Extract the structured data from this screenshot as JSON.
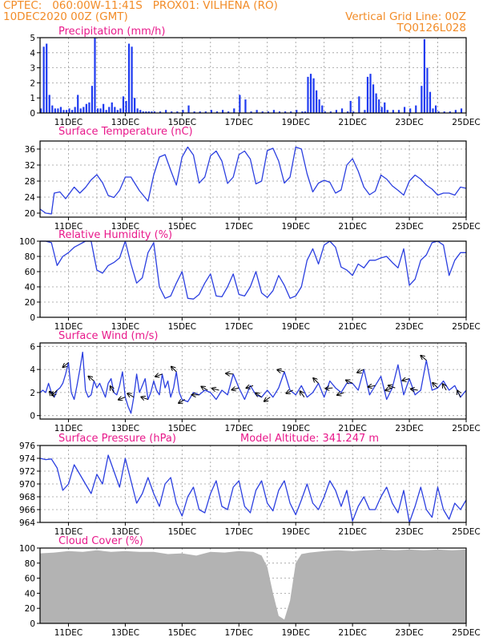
{
  "header": {
    "line1": "CPTEC:   060:00W-11:41S   PROX01: VILHENA (RO)",
    "line2_left": "10DEC2020 00Z (GMT)",
    "line2_right": "Vertical Grid Line: 00Z",
    "line3_right": "TQ0126L028"
  },
  "colors": {
    "line": "#2b3fe0",
    "bar": "#1f3bf0",
    "cloud": "#b3b3b3",
    "title": "#e8198b",
    "header": "#f28c28",
    "grid": "#9a9a9a"
  },
  "x_axis": {
    "start": "10DEC2020 00Z",
    "end": "25DEC2020 00Z",
    "tick_labels": [
      "11DEC",
      "13DEC",
      "15DEC",
      "17DEC",
      "19DEC",
      "21DEC",
      "23DEC",
      "25DEC"
    ],
    "tick_days": [
      11,
      13,
      15,
      17,
      19,
      21,
      23,
      25
    ]
  },
  "chart_data": [
    {
      "id": "precip",
      "type": "bar",
      "title": "Precipitation (mm/h)",
      "ylim": [
        0,
        5
      ],
      "yticks": [
        0,
        1,
        2,
        3,
        4,
        5
      ],
      "x_days": [
        10.0,
        10.1,
        10.2,
        10.3,
        10.4,
        10.5,
        10.6,
        10.7,
        10.8,
        10.9,
        11.0,
        11.1,
        11.2,
        11.3,
        11.4,
        11.5,
        11.6,
        11.7,
        11.8,
        11.9,
        12.0,
        12.1,
        12.2,
        12.3,
        12.4,
        12.5,
        12.6,
        12.7,
        12.8,
        12.9,
        13.0,
        13.1,
        13.2,
        13.3,
        13.4,
        13.5,
        13.6,
        13.7,
        13.8,
        13.9,
        14.0,
        14.2,
        14.4,
        14.6,
        14.8,
        15.0,
        15.2,
        15.4,
        15.6,
        15.8,
        16.0,
        16.2,
        16.4,
        16.6,
        16.8,
        17.0,
        17.2,
        17.4,
        17.6,
        17.8,
        18.0,
        18.2,
        18.4,
        18.6,
        18.8,
        19.0,
        19.2,
        19.3,
        19.4,
        19.5,
        19.6,
        19.7,
        19.8,
        19.9,
        20.0,
        20.2,
        20.4,
        20.6,
        20.8,
        20.9,
        21.0,
        21.2,
        21.4,
        21.5,
        21.6,
        21.7,
        21.8,
        21.9,
        22.0,
        22.1,
        22.2,
        22.4,
        22.6,
        22.8,
        23.0,
        23.2,
        23.4,
        23.5,
        23.6,
        23.7,
        23.8,
        23.9,
        24.0,
        24.2,
        24.4,
        24.6,
        24.8
      ],
      "values": [
        0.3,
        4.4,
        4.6,
        1.2,
        0.5,
        0.3,
        0.3,
        0.4,
        0.2,
        0.2,
        0.3,
        0.2,
        0.4,
        1.2,
        0.3,
        0.4,
        0.6,
        0.7,
        1.8,
        5.0,
        0.3,
        0.3,
        0.6,
        0.2,
        0.4,
        0.7,
        0.4,
        0.2,
        0.3,
        1.1,
        0.8,
        4.6,
        4.4,
        1.0,
        0.3,
        0.2,
        0.1,
        0.1,
        0.1,
        0.1,
        0.1,
        0.1,
        0.2,
        0.1,
        0.1,
        0.2,
        0.5,
        0.1,
        0.1,
        0.1,
        0.2,
        0.1,
        0.2,
        0.1,
        0.3,
        1.2,
        0.9,
        0.1,
        0.2,
        0.1,
        0.1,
        0.2,
        0.1,
        0.1,
        0.1,
        0.2,
        0.1,
        0.1,
        2.4,
        2.6,
        2.3,
        1.5,
        0.9,
        0.5,
        0.1,
        0.1,
        0.2,
        0.3,
        0.1,
        0.8,
        0.1,
        1.1,
        0.2,
        2.4,
        2.6,
        1.9,
        1.3,
        0.9,
        0.4,
        0.7,
        0.2,
        0.2,
        0.2,
        0.4,
        0.3,
        0.5,
        1.8,
        4.9,
        3.0,
        1.4,
        0.3,
        0.5,
        0.1,
        0.1,
        0.1,
        0.2,
        0.3
      ]
    },
    {
      "id": "temperature",
      "type": "line",
      "title": "Surface Temperature (nC)",
      "ylim": [
        19,
        38
      ],
      "yticks": [
        20,
        24,
        28,
        32,
        36
      ],
      "x": [
        10.0,
        10.2,
        10.4,
        10.5,
        10.7,
        10.9,
        11.2,
        11.4,
        11.6,
        11.8,
        12.0,
        12.2,
        12.4,
        12.6,
        12.8,
        13.0,
        13.2,
        13.5,
        13.8,
        14.0,
        14.2,
        14.4,
        14.6,
        14.8,
        15.0,
        15.2,
        15.4,
        15.6,
        15.8,
        16.0,
        16.2,
        16.4,
        16.6,
        16.8,
        17.0,
        17.2,
        17.4,
        17.6,
        17.8,
        18.0,
        18.2,
        18.4,
        18.6,
        18.8,
        19.0,
        19.2,
        19.4,
        19.6,
        19.8,
        20.0,
        20.2,
        20.4,
        20.6,
        20.8,
        21.0,
        21.2,
        21.4,
        21.6,
        21.8,
        22.0,
        22.2,
        22.4,
        22.6,
        22.8,
        23.0,
        23.2,
        23.4,
        23.6,
        23.8,
        24.0,
        24.2,
        24.4,
        24.6,
        24.8,
        25.0
      ],
      "values": [
        21.0,
        20.0,
        19.8,
        25.0,
        25.3,
        23.6,
        26.5,
        25.0,
        26.4,
        28.3,
        29.6,
        27.6,
        24.4,
        23.9,
        25.7,
        29.0,
        29.0,
        25.6,
        23.0,
        29.5,
        34.0,
        34.6,
        30.7,
        27.0,
        34.0,
        36.5,
        34.5,
        27.5,
        29.0,
        34.3,
        35.5,
        33.0,
        27.4,
        29.0,
        34.6,
        35.5,
        33.5,
        27.3,
        28.0,
        35.6,
        36.2,
        33.0,
        27.5,
        29.0,
        36.5,
        36.0,
        29.8,
        25.3,
        27.5,
        28.2,
        27.7,
        25.0,
        25.8,
        32.0,
        33.6,
        30.5,
        26.5,
        24.6,
        25.5,
        29.5,
        28.5,
        26.8,
        25.7,
        24.5,
        28.0,
        29.5,
        28.5,
        27.0,
        26.0,
        24.5,
        25.0,
        25.0,
        24.5,
        26.5,
        26.2
      ]
    },
    {
      "id": "humidity",
      "type": "line",
      "title": "Relative Humidity (%)",
      "ylim": [
        0,
        100
      ],
      "yticks": [
        0,
        20,
        40,
        60,
        80,
        100
      ],
      "x": [
        10.0,
        10.2,
        10.4,
        10.6,
        10.8,
        11.0,
        11.2,
        11.4,
        11.6,
        11.8,
        12.0,
        12.2,
        12.4,
        12.6,
        12.8,
        13.0,
        13.2,
        13.4,
        13.6,
        13.8,
        14.0,
        14.2,
        14.4,
        14.6,
        14.8,
        15.0,
        15.2,
        15.4,
        15.6,
        15.8,
        16.0,
        16.2,
        16.4,
        16.6,
        16.8,
        17.0,
        17.2,
        17.4,
        17.6,
        17.8,
        18.0,
        18.2,
        18.4,
        18.6,
        18.8,
        19.0,
        19.2,
        19.4,
        19.6,
        19.8,
        20.0,
        20.2,
        20.4,
        20.6,
        20.8,
        21.0,
        21.2,
        21.4,
        21.6,
        21.8,
        22.0,
        22.2,
        22.4,
        22.6,
        22.8,
        23.0,
        23.2,
        23.4,
        23.6,
        23.8,
        24.0,
        24.2,
        24.4,
        24.6,
        24.8,
        25.0
      ],
      "values": [
        100,
        100,
        98,
        68,
        80,
        85,
        92,
        96,
        100,
        100,
        62,
        58,
        68,
        72,
        78,
        100,
        70,
        45,
        52,
        85,
        98,
        40,
        25,
        28,
        45,
        60,
        25,
        24,
        30,
        45,
        57,
        28,
        27,
        40,
        57,
        30,
        28,
        40,
        60,
        32,
        26,
        35,
        55,
        42,
        25,
        28,
        40,
        75,
        90,
        70,
        95,
        100,
        92,
        66,
        62,
        55,
        70,
        65,
        75,
        75,
        78,
        80,
        72,
        65,
        90,
        42,
        50,
        75,
        82,
        98,
        100,
        95,
        55,
        75,
        85,
        85
      ]
    },
    {
      "id": "wind",
      "type": "line",
      "title": "Surface Wind (m/s)",
      "ylim": [
        -0.3,
        6.3
      ],
      "yticks": [
        0,
        2,
        4,
        6
      ],
      "x": [
        10.0,
        10.1,
        10.2,
        10.3,
        10.4,
        10.5,
        10.6,
        10.7,
        10.8,
        10.9,
        11.0,
        11.1,
        11.2,
        11.3,
        11.4,
        11.5,
        11.6,
        11.7,
        11.8,
        11.9,
        12.0,
        12.1,
        12.2,
        12.3,
        12.4,
        12.5,
        12.6,
        12.7,
        12.8,
        12.9,
        13.0,
        13.1,
        13.2,
        13.3,
        13.4,
        13.5,
        13.6,
        13.7,
        13.8,
        13.9,
        14.0,
        14.1,
        14.2,
        14.3,
        14.4,
        14.5,
        14.6,
        14.7,
        14.8,
        14.9,
        15.0,
        15.2,
        15.4,
        15.6,
        15.8,
        16.0,
        16.2,
        16.4,
        16.6,
        16.8,
        17.0,
        17.2,
        17.4,
        17.6,
        17.8,
        18.0,
        18.2,
        18.4,
        18.6,
        18.8,
        19.0,
        19.2,
        19.4,
        19.6,
        19.8,
        20.0,
        20.2,
        20.4,
        20.6,
        20.8,
        21.0,
        21.2,
        21.4,
        21.6,
        21.8,
        22.0,
        22.2,
        22.4,
        22.6,
        22.8,
        23.0,
        23.2,
        23.4,
        23.6,
        23.8,
        24.0,
        24.2,
        24.4,
        24.6,
        24.8,
        25.0
      ],
      "values": [
        2.0,
        2.2,
        2.0,
        2.8,
        2.0,
        1.6,
        2.2,
        2.4,
        2.8,
        3.6,
        4.6,
        2.0,
        1.4,
        2.6,
        4.0,
        5.5,
        2.2,
        1.6,
        1.8,
        3.0,
        2.4,
        2.8,
        2.2,
        1.6,
        2.8,
        3.2,
        2.0,
        1.8,
        2.6,
        3.8,
        1.6,
        0.8,
        0.2,
        1.6,
        3.6,
        2.0,
        2.6,
        3.2,
        1.4,
        2.0,
        3.0,
        2.2,
        1.8,
        3.6,
        2.4,
        3.0,
        1.6,
        2.4,
        3.8,
        2.0,
        1.4,
        1.2,
        2.0,
        1.8,
        2.2,
        2.0,
        1.4,
        2.2,
        1.8,
        3.6,
        2.4,
        1.4,
        2.6,
        1.8,
        1.6,
        2.2,
        1.6,
        2.4,
        3.8,
        2.2,
        1.8,
        2.6,
        1.6,
        2.0,
        2.8,
        1.6,
        3.0,
        2.4,
        2.0,
        2.8,
        2.8,
        2.2,
        4.0,
        1.8,
        2.6,
        3.4,
        1.4,
        2.4,
        4.4,
        1.8,
        3.2,
        1.8,
        2.2,
        4.8,
        2.2,
        2.4,
        3.0,
        2.2,
        2.6,
        1.6,
        2.2
      ],
      "vectors": [
        {
          "day": 10.5,
          "dir_deg": 130
        },
        {
          "day": 10.6,
          "dir_deg": 225
        },
        {
          "day": 11.0,
          "dir_deg": 220
        },
        {
          "day": 11.9,
          "dir_deg": 140
        },
        {
          "day": 12.6,
          "dir_deg": 120
        },
        {
          "day": 13.0,
          "dir_deg": 200
        },
        {
          "day": 13.3,
          "dir_deg": 150
        },
        {
          "day": 13.8,
          "dir_deg": 160
        },
        {
          "day": 14.3,
          "dir_deg": 200
        },
        {
          "day": 14.8,
          "dir_deg": 135
        },
        {
          "day": 15.1,
          "dir_deg": 210
        },
        {
          "day": 15.6,
          "dir_deg": 180
        },
        {
          "day": 15.9,
          "dir_deg": 150
        },
        {
          "day": 16.3,
          "dir_deg": 165
        },
        {
          "day": 16.8,
          "dir_deg": 175
        },
        {
          "day": 17.0,
          "dir_deg": 195
        },
        {
          "day": 17.5,
          "dir_deg": 200
        },
        {
          "day": 17.8,
          "dir_deg": 145
        },
        {
          "day": 18.1,
          "dir_deg": 215
        },
        {
          "day": 18.6,
          "dir_deg": 165
        },
        {
          "day": 18.9,
          "dir_deg": 205
        },
        {
          "day": 19.3,
          "dir_deg": 125
        },
        {
          "day": 19.8,
          "dir_deg": 135
        },
        {
          "day": 20.3,
          "dir_deg": 185
        },
        {
          "day": 20.7,
          "dir_deg": 200
        },
        {
          "day": 21.0,
          "dir_deg": 155
        },
        {
          "day": 21.4,
          "dir_deg": 205
        },
        {
          "day": 21.8,
          "dir_deg": 190
        },
        {
          "day": 22.4,
          "dir_deg": 200
        },
        {
          "day": 22.5,
          "dir_deg": 160
        },
        {
          "day": 23.0,
          "dir_deg": 195
        },
        {
          "day": 23.3,
          "dir_deg": 170
        },
        {
          "day": 23.6,
          "dir_deg": 140
        },
        {
          "day": 24.0,
          "dir_deg": 135
        },
        {
          "day": 24.3,
          "dir_deg": 120
        },
        {
          "day": 24.8,
          "dir_deg": 115
        }
      ]
    },
    {
      "id": "pressure",
      "type": "line",
      "title": "Surface Pressure (hPa)",
      "annotation": "Model Altitude: 341.247  m",
      "ylim": [
        964,
        976
      ],
      "yticks": [
        964,
        966,
        968,
        970,
        972,
        974,
        976
      ],
      "x": [
        10.0,
        10.2,
        10.4,
        10.6,
        10.8,
        11.0,
        11.2,
        11.4,
        11.6,
        11.8,
        12.0,
        12.2,
        12.4,
        12.6,
        12.8,
        13.0,
        13.2,
        13.4,
        13.6,
        13.8,
        14.0,
        14.2,
        14.4,
        14.6,
        14.8,
        15.0,
        15.2,
        15.4,
        15.6,
        15.8,
        16.0,
        16.2,
        16.4,
        16.6,
        16.8,
        17.0,
        17.2,
        17.4,
        17.6,
        17.8,
        18.0,
        18.2,
        18.4,
        18.6,
        18.8,
        19.0,
        19.2,
        19.4,
        19.6,
        19.8,
        20.0,
        20.2,
        20.4,
        20.6,
        20.8,
        21.0,
        21.2,
        21.4,
        21.6,
        21.8,
        22.0,
        22.2,
        22.4,
        22.6,
        22.8,
        23.0,
        23.2,
        23.4,
        23.6,
        23.8,
        24.0,
        24.2,
        24.4,
        24.6,
        24.8,
        25.0
      ],
      "values": [
        974.0,
        973.8,
        973.9,
        972.5,
        969.0,
        970.0,
        973.0,
        971.5,
        970.0,
        968.5,
        971.5,
        970.0,
        974.5,
        972.0,
        969.5,
        974.0,
        970.5,
        967.0,
        968.5,
        971.0,
        968.5,
        966.5,
        970.0,
        971.0,
        967.0,
        965.0,
        968.0,
        969.5,
        966.0,
        965.5,
        968.5,
        970.5,
        966.5,
        966.0,
        969.5,
        970.5,
        966.5,
        965.5,
        969.0,
        970.5,
        967.0,
        965.8,
        969.0,
        970.5,
        967.0,
        965.2,
        967.5,
        970.0,
        967.0,
        966.0,
        968.0,
        970.5,
        969.0,
        966.5,
        969.0,
        964.2,
        966.5,
        968.0,
        966.0,
        966.0,
        968.0,
        969.5,
        967.0,
        965.5,
        969.0,
        964.0,
        966.5,
        969.5,
        966.0,
        964.8,
        969.5,
        966.0,
        964.5,
        967.0,
        966.0,
        967.5
      ]
    },
    {
      "id": "cloud",
      "type": "area",
      "title": "Cloud Cover (%)",
      "ylim": [
        0,
        100
      ],
      "yticks": [
        0,
        20,
        40,
        60,
        80,
        100
      ],
      "x": [
        10.0,
        10.5,
        11.0,
        11.5,
        12.0,
        12.5,
        13.0,
        13.5,
        14.0,
        14.5,
        15.0,
        15.5,
        16.0,
        16.5,
        17.0,
        17.5,
        17.8,
        18.0,
        18.2,
        18.4,
        18.6,
        18.8,
        19.0,
        19.2,
        19.5,
        20.0,
        20.5,
        21.0,
        21.5,
        22.0,
        22.5,
        23.0,
        23.5,
        24.0,
        24.5,
        25.0
      ],
      "values": [
        93,
        94,
        96,
        95,
        97,
        95,
        96,
        95,
        95,
        92,
        93,
        90,
        95,
        94,
        96,
        95,
        90,
        75,
        40,
        10,
        5,
        30,
        80,
        92,
        94,
        96,
        97,
        96,
        97,
        98,
        97,
        98,
        97,
        98,
        97,
        98
      ]
    }
  ]
}
